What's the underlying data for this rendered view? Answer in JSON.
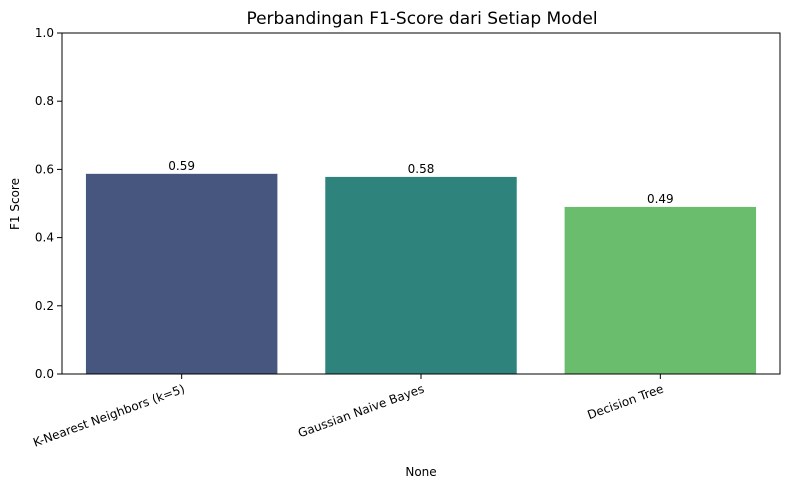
{
  "chart_data": {
    "type": "bar",
    "title": "Perbandingan F1-Score dari Setiap Model",
    "xlabel": "None",
    "ylabel": "F1 Score",
    "ylim": [
      0,
      1.0
    ],
    "yticks": [
      "0.0",
      "0.2",
      "0.4",
      "0.6",
      "0.8",
      "1.0"
    ],
    "categories": [
      "K-Nearest Neighbors (k=5)",
      "Gaussian Naive Bayes",
      "Decision Tree"
    ],
    "values": [
      0.587,
      0.578,
      0.49
    ],
    "data_labels": [
      "0.59",
      "0.58",
      "0.49"
    ],
    "colors": [
      "#46567f",
      "#2e837d",
      "#6bbd6e"
    ],
    "grid": false,
    "legend": "none"
  }
}
